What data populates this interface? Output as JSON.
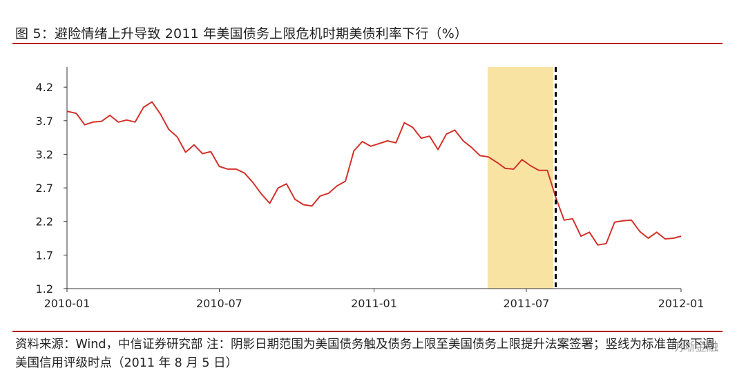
{
  "title": "图 5：避险情绪上升导致 2011 年美国债务上限危机时期美债利率下行（%）",
  "source": "资料来源：Wind，中信证券研究部 注：阴影日期范围为美国债务触及债务上限至美国债务上限提升法案签署；竖线为标准普尔下调美国信用评级时点（2011 年 8 月 5 日）",
  "watermark": "明晰金融",
  "colors": {
    "line": "#d2312a",
    "shade": "#f8e3a3",
    "rule": "#b81c1c",
    "axis": "#333333",
    "vline": "#000000"
  },
  "chart_data": {
    "type": "line",
    "title": "",
    "xlabel": "",
    "ylabel": "",
    "x_ticks": [
      "2010-01",
      "2010-07",
      "2011-01",
      "2011-07",
      "2012-01"
    ],
    "y_ticks": [
      1.2,
      1.7,
      2.2,
      2.7,
      3.2,
      3.7,
      4.2
    ],
    "ylim": [
      1.2,
      4.5
    ],
    "xlim": [
      "2010-01-01",
      "2012-01-01"
    ],
    "grid": false,
    "shaded_period": {
      "start": "2011-05-16",
      "end": "2011-08-02"
    },
    "vertical_line": {
      "date": "2011-08-05",
      "style": "dashed"
    },
    "series": [
      {
        "x": [
          "2010-01-01",
          "2010-01-12",
          "2010-01-22",
          "2010-02-01",
          "2010-02-11",
          "2010-02-21",
          "2010-03-03",
          "2010-03-13",
          "2010-03-23",
          "2010-04-02",
          "2010-04-12",
          "2010-04-22",
          "2010-05-02",
          "2010-05-12",
          "2010-05-22",
          "2010-06-01",
          "2010-06-11",
          "2010-06-21",
          "2010-07-01",
          "2010-07-11",
          "2010-07-21",
          "2010-07-31",
          "2010-08-10",
          "2010-08-20",
          "2010-08-30",
          "2010-09-09",
          "2010-09-19",
          "2010-09-29",
          "2010-10-09",
          "2010-10-19",
          "2010-10-29",
          "2010-11-08",
          "2010-11-18",
          "2010-11-28",
          "2010-12-08",
          "2010-12-18",
          "2010-12-28",
          "2011-01-07",
          "2011-01-17",
          "2011-01-27",
          "2011-02-06",
          "2011-02-16",
          "2011-02-26",
          "2011-03-08",
          "2011-03-18",
          "2011-03-28",
          "2011-04-07",
          "2011-04-17",
          "2011-04-27",
          "2011-05-07",
          "2011-05-17",
          "2011-05-27",
          "2011-06-06",
          "2011-06-16",
          "2011-06-26",
          "2011-07-06",
          "2011-07-16",
          "2011-07-26",
          "2011-08-05",
          "2011-08-15",
          "2011-08-25",
          "2011-09-04",
          "2011-09-14",
          "2011-09-24",
          "2011-10-04",
          "2011-10-14",
          "2011-10-24",
          "2011-11-03",
          "2011-11-13",
          "2011-11-23",
          "2011-12-03",
          "2011-12-13",
          "2011-12-23",
          "2012-01-01"
        ],
        "y": [
          3.84,
          3.81,
          3.64,
          3.68,
          3.69,
          3.78,
          3.68,
          3.71,
          3.68,
          3.9,
          3.98,
          3.8,
          3.57,
          3.46,
          3.23,
          3.34,
          3.21,
          3.24,
          3.02,
          2.98,
          2.98,
          2.92,
          2.78,
          2.61,
          2.47,
          2.7,
          2.76,
          2.53,
          2.45,
          2.43,
          2.58,
          2.62,
          2.73,
          2.8,
          3.25,
          3.39,
          3.32,
          3.36,
          3.4,
          3.37,
          3.67,
          3.6,
          3.44,
          3.47,
          3.27,
          3.5,
          3.56,
          3.4,
          3.3,
          3.18,
          3.16,
          3.08,
          2.99,
          2.98,
          3.12,
          3.03,
          2.96,
          2.96,
          2.56,
          2.22,
          2.24,
          1.98,
          2.04,
          1.85,
          1.87,
          2.19,
          2.21,
          2.22,
          2.05,
          1.95,
          2.04,
          1.94,
          1.95,
          1.98
        ]
      }
    ]
  }
}
